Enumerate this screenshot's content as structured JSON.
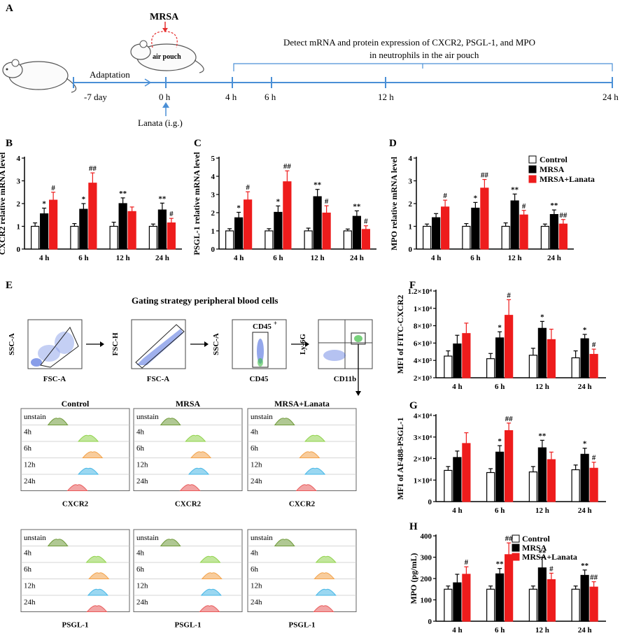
{
  "panels": {
    "A": "A",
    "B": "B",
    "C": "C",
    "D": "D",
    "E": "E",
    "F": "F",
    "G": "G",
    "H": "H"
  },
  "timeline": {
    "mrsa_label": "MRSA",
    "pouch_label": "air pouch",
    "adaptation_label": "Adaptation",
    "start_label": "-7 day",
    "lanata_label": "Lanata (i.g.)",
    "detect_line1": "Detect  mRNA and protein expression of CXCR2, PSGL-1, and MPO",
    "detect_line2": "in neutrophils in the air pouch",
    "times": [
      "0 h",
      "4 h",
      "6 h",
      "12 h",
      "24 h"
    ]
  },
  "legend": {
    "labels": [
      "Control",
      "MRSA",
      "MRSA+Lanata"
    ],
    "colors": [
      "#ffffff",
      "#000000",
      "#ee1c1c"
    ]
  },
  "gating": {
    "title": "Gating strategy peripheral blood cells",
    "plots": [
      {
        "x": "FSC-A",
        "y": "SSC-A"
      },
      {
        "x": "FSC-A",
        "y": "FSC-H"
      },
      {
        "x": "CD45",
        "y": "SSC-A",
        "gate": "CD45"
      },
      {
        "x": "CD11b",
        "y": "Ly-6G"
      }
    ],
    "cd45_sup": "+"
  },
  "histograms": {
    "columns": [
      "Control",
      "MRSA",
      "MRSA+Lanata"
    ],
    "rows": [
      "unstain",
      "4h",
      "6h",
      "12h",
      "24h"
    ],
    "row_colors": [
      "#6f9a3a",
      "#8fd24a",
      "#f2a24a",
      "#47b7e6",
      "#e85a5a"
    ],
    "markers": [
      "CXCR2",
      "PSGL-1"
    ]
  },
  "chart_data": [
    {
      "id": "B",
      "type": "bar",
      "ylabel": "CXCR2 relative mRNA level",
      "ylim": [
        0,
        4
      ],
      "categories": [
        "4 h",
        "6 h",
        "12 h",
        "24 h"
      ],
      "yticks": [
        "0",
        "1",
        "2",
        "3",
        "4"
      ],
      "series": [
        {
          "name": "Control",
          "values": [
            1.0,
            1.0,
            1.0,
            1.0
          ],
          "err": [
            0.15,
            0.12,
            0.18,
            0.1
          ]
        },
        {
          "name": "MRSA",
          "values": [
            1.55,
            1.75,
            2.0,
            1.72
          ],
          "err": [
            0.25,
            0.25,
            0.25,
            0.3
          ]
        },
        {
          "name": "MRSA+Lanata",
          "values": [
            2.15,
            2.9,
            1.65,
            1.15
          ],
          "err": [
            0.35,
            0.45,
            0.2,
            0.2
          ]
        }
      ],
      "marks": [
        [
          "",
          "*",
          "#"
        ],
        [
          "",
          "*",
          "##"
        ],
        [
          "",
          "**",
          ""
        ],
        [
          "",
          "**",
          "#"
        ]
      ]
    },
    {
      "id": "C",
      "type": "bar",
      "ylabel": "PSGL-1 relative mRNA level",
      "ylim": [
        0,
        5
      ],
      "categories": [
        "4 h",
        "6 h",
        "12 h",
        "24 h"
      ],
      "yticks": [
        "0",
        "1",
        "2",
        "3",
        "4",
        "5"
      ],
      "series": [
        {
          "name": "Control",
          "values": [
            1.0,
            1.0,
            1.0,
            1.0
          ],
          "err": [
            0.12,
            0.12,
            0.15,
            0.1
          ]
        },
        {
          "name": "MRSA",
          "values": [
            1.72,
            2.02,
            2.88,
            1.8
          ],
          "err": [
            0.3,
            0.35,
            0.4,
            0.3
          ]
        },
        {
          "name": "MRSA+Lanata",
          "values": [
            2.7,
            3.7,
            1.98,
            1.08
          ],
          "err": [
            0.45,
            0.6,
            0.4,
            0.2
          ]
        }
      ],
      "marks": [
        [
          "",
          "*",
          "#"
        ],
        [
          "",
          "*",
          "##"
        ],
        [
          "",
          "**",
          "#"
        ],
        [
          "",
          "**",
          "#"
        ]
      ]
    },
    {
      "id": "D",
      "type": "bar",
      "ylabel": "MPO relative mRNA level",
      "ylim": [
        0,
        4
      ],
      "categories": [
        "4 h",
        "6 h",
        "12 h",
        "24 h"
      ],
      "yticks": [
        "0",
        "1",
        "2",
        "3",
        "4"
      ],
      "series": [
        {
          "name": "Control",
          "values": [
            1.0,
            1.0,
            1.0,
            1.0
          ],
          "err": [
            0.1,
            0.12,
            0.15,
            0.1
          ]
        },
        {
          "name": "MRSA",
          "values": [
            1.38,
            1.8,
            2.12,
            1.52
          ],
          "err": [
            0.18,
            0.25,
            0.3,
            0.2
          ]
        },
        {
          "name": "MRSA+Lanata",
          "values": [
            1.85,
            2.68,
            1.5,
            1.1
          ],
          "err": [
            0.3,
            0.38,
            0.2,
            0.2
          ]
        }
      ],
      "marks": [
        [
          "",
          "",
          "#"
        ],
        [
          "",
          "*",
          "##"
        ],
        [
          "",
          "**",
          "#"
        ],
        [
          "",
          "**",
          "##"
        ]
      ]
    },
    {
      "id": "F",
      "type": "bar",
      "ylabel": "MFI of FITC-CXCR2",
      "ylim": [
        2000,
        12000
      ],
      "categories": [
        "4 h",
        "6 h",
        "12 h",
        "24 h"
      ],
      "yticks": [
        "2×10³",
        "4×10³",
        "6×10³",
        "8×10³",
        "1×10⁴",
        "1.2×10⁴"
      ],
      "series": [
        {
          "name": "Control",
          "values": [
            4500,
            4200,
            4600,
            4300
          ],
          "err": [
            600,
            600,
            800,
            800
          ]
        },
        {
          "name": "MRSA",
          "values": [
            5900,
            6600,
            7700,
            6500
          ],
          "err": [
            1000,
            700,
            800,
            500
          ]
        },
        {
          "name": "MRSA+Lanata",
          "values": [
            7100,
            9200,
            6400,
            4700
          ],
          "err": [
            1200,
            1800,
            1200,
            600
          ]
        }
      ],
      "marks": [
        [
          "",
          "",
          ""
        ],
        [
          "",
          "*",
          "#"
        ],
        [
          "",
          "*",
          ""
        ],
        [
          "",
          "*",
          "#"
        ]
      ]
    },
    {
      "id": "G",
      "type": "bar",
      "ylabel": "MFI of  AF488-PSGL-1",
      "ylim": [
        0,
        40000
      ],
      "categories": [
        "4 h",
        "6 h",
        "12 h",
        "24 h"
      ],
      "yticks": [
        "0",
        "1×10⁴",
        "2×10⁴",
        "3×10⁴",
        "4×10⁴"
      ],
      "series": [
        {
          "name": "Control",
          "values": [
            14500,
            13500,
            13800,
            14800
          ],
          "err": [
            1800,
            1800,
            2500,
            2200
          ]
        },
        {
          "name": "MRSA",
          "values": [
            20500,
            23000,
            25000,
            22000
          ],
          "err": [
            3000,
            3000,
            3500,
            2800
          ]
        },
        {
          "name": "MRSA+Lanata",
          "values": [
            27000,
            33000,
            19500,
            15500
          ],
          "err": [
            5000,
            3500,
            3500,
            2800
          ]
        }
      ],
      "marks": [
        [
          "",
          "",
          ""
        ],
        [
          "",
          "*",
          "##"
        ],
        [
          "",
          "**",
          ""
        ],
        [
          "",
          "*",
          "#"
        ]
      ]
    },
    {
      "id": "H",
      "type": "bar",
      "ylabel": "MPO (pg/mL)",
      "ylim": [
        0,
        400
      ],
      "categories": [
        "4 h",
        "6 h",
        "12 h",
        "24 h"
      ],
      "yticks": [
        "0",
        "100",
        "200",
        "300",
        "400"
      ],
      "series": [
        {
          "name": "Control",
          "values": [
            150,
            150,
            150,
            150
          ],
          "err": [
            15,
            15,
            15,
            15
          ]
        },
        {
          "name": "MRSA",
          "values": [
            180,
            222,
            250,
            215
          ],
          "err": [
            40,
            25,
            50,
            25
          ]
        },
        {
          "name": "MRSA+Lanata",
          "values": [
            220,
            312,
            195,
            160
          ],
          "err": [
            35,
            55,
            30,
            25
          ]
        }
      ],
      "marks": [
        [
          "",
          "",
          "#"
        ],
        [
          "",
          "**",
          "##"
        ],
        [
          "",
          "**",
          "#"
        ],
        [
          "",
          "**",
          "##"
        ]
      ]
    }
  ]
}
